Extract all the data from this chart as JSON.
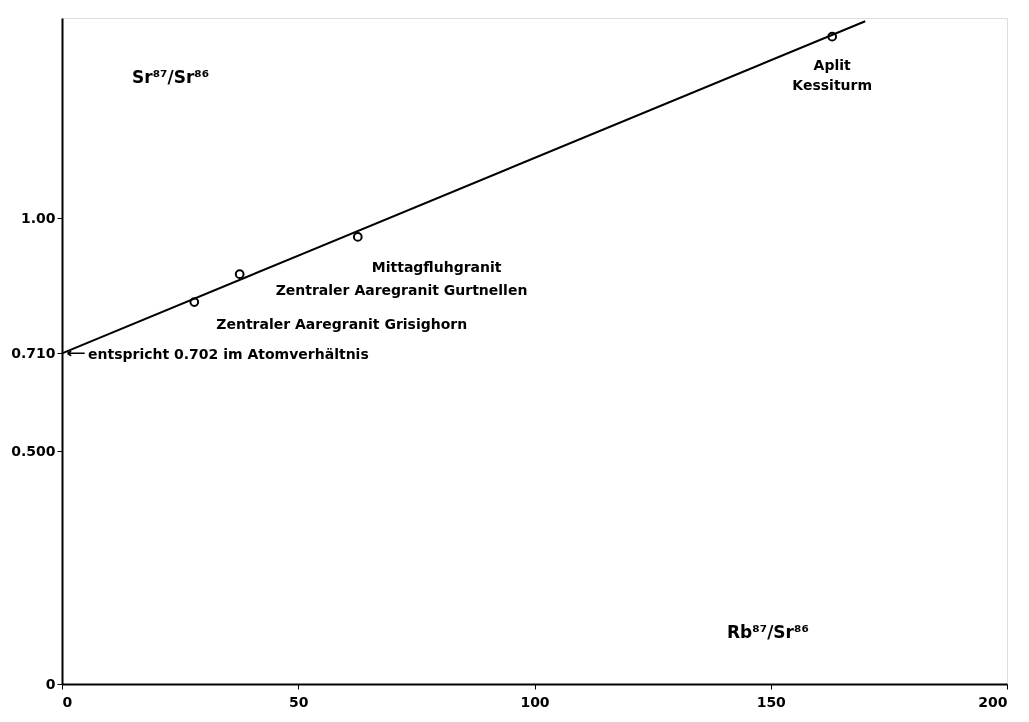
{
  "chart_data": {
    "type": "scatter",
    "xlabel": "Rb⁸⁷/Sr⁸⁶",
    "ylabel": "Sr⁸⁷/Sr⁸⁶",
    "marker": "circle",
    "grid": false,
    "xlim": [
      0,
      200
    ],
    "ylim": [
      0,
      1.43
    ],
    "xticks": [
      0,
      50,
      100,
      150,
      200
    ],
    "yticks": [
      0,
      {
        "value": 0.5,
        "label": "0.500"
      },
      {
        "value": 0.71,
        "label": "0.710"
      },
      {
        "value": 1.0,
        "label": "1.00"
      }
    ],
    "series": [
      {
        "color": "#000000",
        "x": [
          28,
          37.6,
          62.6,
          163
        ],
        "values": [
          0.82,
          0.88,
          0.96,
          1.39
        ]
      },
      {
        "type": "line",
        "color": "#000000",
        "line_style": "solid",
        "marker": "none",
        "x": [
          0,
          170
        ],
        "values": [
          0.71,
          1.423
        ]
      }
    ],
    "annotations": [
      {
        "text": "Zentraler Aaregranit  Grisighorn",
        "x": 28,
        "y": 0.82
      },
      {
        "text": "Zentraler Aaregranit  Gurtnellen",
        "x": 37.6,
        "y": 0.88
      },
      {
        "text": "Mittagfluhgranit",
        "x": 62.6,
        "y": 0.96
      },
      {
        "text": "Aplit\nKessiturm",
        "x": 163,
        "y": 1.39
      },
      {
        "text": "entspricht 0.702 im Atomverhältnis",
        "x": 0,
        "y": 0.71
      }
    ]
  }
}
